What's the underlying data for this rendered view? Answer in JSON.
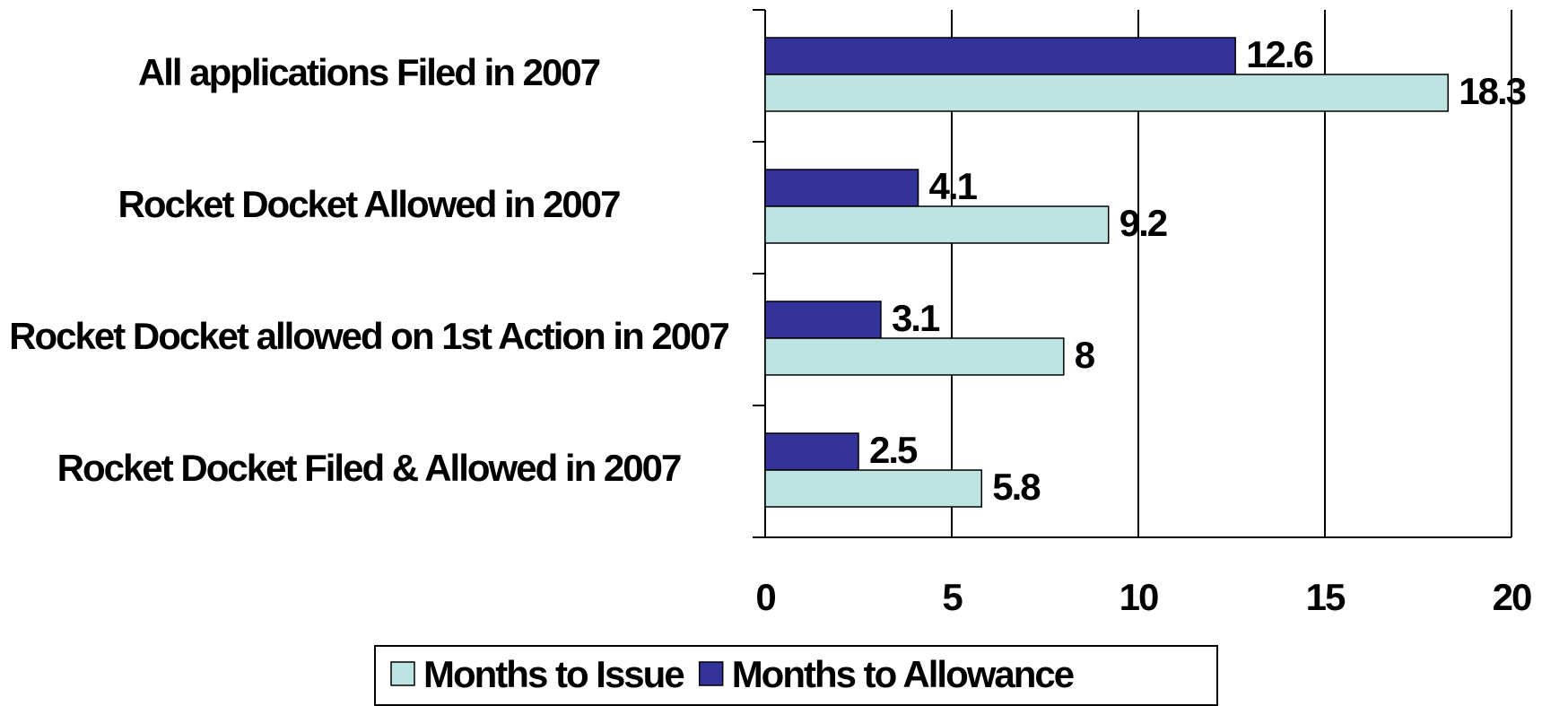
{
  "chart_data": {
    "type": "bar",
    "orientation": "horizontal",
    "categories": [
      "All applications Filed in 2007",
      "Rocket Docket Allowed in 2007",
      "Rocket Docket allowed on 1st Action in 2007",
      "Rocket Docket Filed & Allowed in 2007"
    ],
    "series": [
      {
        "name": "Months to Issue",
        "color": "#bde3e3",
        "values": [
          18.3,
          9.2,
          8,
          5.8
        ]
      },
      {
        "name": "Months to Allowance",
        "color": "#333399",
        "values": [
          12.6,
          4.1,
          3.1,
          2.5
        ]
      }
    ],
    "xlim": [
      0,
      20
    ],
    "xticks": [
      0,
      5,
      10,
      15,
      20
    ],
    "grid": true,
    "legend": "bottom"
  }
}
